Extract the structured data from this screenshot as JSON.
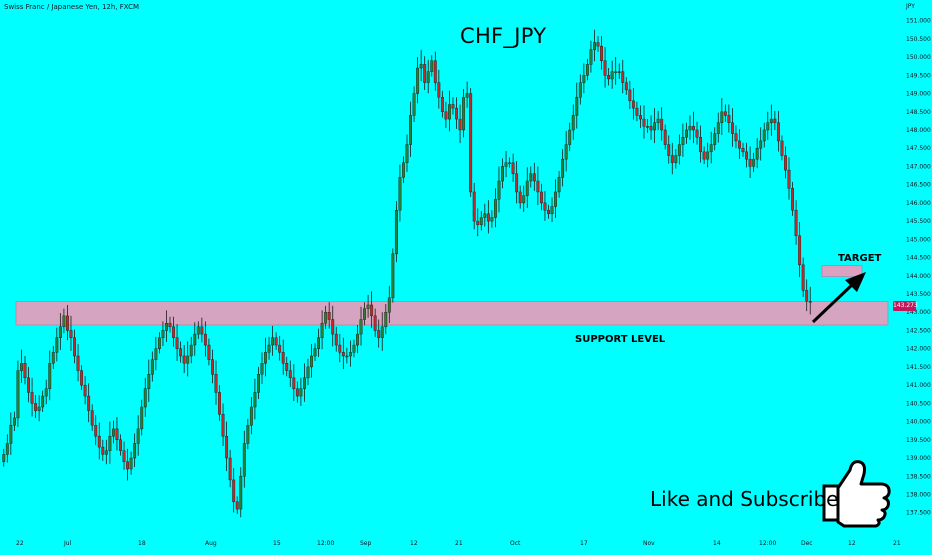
{
  "header": {
    "symbol_info": "Swiss Franc / Japanese Yen, 12h, FXCM",
    "price_axis_unit": "JPY"
  },
  "annotations": {
    "support_label": "SUPPORT LEVEL",
    "target_label": "TARGET",
    "cta_text": "Like and Subscribe",
    "current_price": "143.273"
  },
  "colors": {
    "background": "#00ffff",
    "candle_up": "#2e7d32",
    "candle_down": "#d32f2f",
    "candle_down_body": "#c62828",
    "zone_fill": "#d4a4c0",
    "zone_stroke": "#b07a9e",
    "target_fill": "#dca0c0",
    "axis_text": "#131722",
    "arrow": "#000000"
  },
  "icons": {
    "thumbs_up": "thumbs-up-icon",
    "target_arrow": "arrow-up-right-icon"
  },
  "chart_data": {
    "type": "candlestick",
    "title": "CHF_JPY",
    "y_axis": {
      "unit": "JPY",
      "range": [
        137.3,
        151.1
      ],
      "ticks": [
        "151.000",
        "150.500",
        "150.000",
        "149.500",
        "149.000",
        "148.500",
        "148.000",
        "147.500",
        "147.000",
        "146.500",
        "146.000",
        "145.500",
        "145.000",
        "144.500",
        "144.000",
        "143.500",
        "143.000",
        "142.500",
        "142.000",
        "141.500",
        "141.000",
        "140.500",
        "140.000",
        "139.500",
        "139.000",
        "138.500",
        "138.000",
        "137.500"
      ]
    },
    "x_axis": {
      "ticks": [
        "22",
        "Jul",
        "18",
        "Aug",
        "15",
        "12:00",
        "Sep",
        "12",
        "21",
        "Oct",
        "17",
        "Nov",
        "14",
        "12:00",
        "Dec",
        "12",
        "21"
      ]
    },
    "zones": [
      {
        "name": "SUPPORT LEVEL",
        "low": 142.65,
        "high": 143.3
      },
      {
        "name": "TARGET",
        "low": 143.98,
        "high": 144.28
      }
    ],
    "current_price": 143.273,
    "series": {
      "close": [
        139.1,
        139.4,
        139.9,
        140.1,
        141.4,
        141.6,
        141.2,
        140.8,
        140.5,
        140.3,
        140.4,
        140.7,
        140.9,
        141.6,
        141.9,
        142.3,
        142.6,
        142.9,
        142.5,
        142.3,
        141.8,
        141.4,
        141.0,
        140.7,
        140.3,
        139.9,
        139.6,
        139.3,
        139.1,
        139.2,
        139.6,
        139.8,
        139.5,
        139.2,
        138.9,
        138.7,
        139.0,
        139.4,
        139.8,
        140.4,
        140.9,
        141.3,
        141.7,
        142.0,
        142.3,
        142.5,
        142.7,
        142.6,
        142.3,
        142.0,
        141.8,
        141.6,
        141.8,
        142.1,
        142.4,
        142.6,
        142.4,
        142.1,
        141.7,
        141.3,
        140.8,
        140.2,
        139.6,
        139.0,
        138.4,
        137.8,
        137.6,
        138.5,
        139.4,
        139.9,
        140.4,
        140.8,
        141.3,
        141.6,
        141.9,
        142.1,
        142.3,
        142.1,
        141.9,
        141.6,
        141.4,
        141.2,
        140.9,
        140.7,
        140.9,
        141.2,
        141.5,
        141.8,
        142.0,
        142.3,
        142.7,
        143.0,
        142.8,
        142.4,
        142.1,
        141.9,
        141.8,
        141.8,
        141.9,
        142.1,
        142.4,
        142.8,
        143.1,
        143.2,
        142.9,
        142.5,
        142.3,
        142.6,
        143.0,
        143.4,
        144.6,
        145.8,
        146.7,
        147.1,
        147.6,
        148.4,
        149.0,
        149.7,
        149.8,
        149.3,
        149.6,
        149.9,
        149.3,
        148.9,
        148.5,
        148.3,
        148.7,
        148.6,
        148.3,
        148.0,
        148.9,
        149.0,
        146.3,
        145.5,
        145.4,
        145.6,
        145.7,
        145.5,
        145.6,
        146.1,
        146.6,
        147.0,
        147.1,
        147.1,
        146.8,
        146.3,
        146.0,
        146.2,
        146.6,
        146.8,
        146.6,
        146.3,
        146.0,
        145.8,
        145.7,
        145.9,
        146.3,
        146.7,
        147.2,
        147.6,
        148.0,
        148.4,
        148.9,
        149.3,
        149.5,
        149.8,
        150.2,
        150.4,
        150.3,
        149.9,
        149.5,
        149.4,
        149.6,
        149.6,
        149.6,
        149.3,
        149.1,
        148.8,
        148.6,
        148.4,
        148.3,
        148.1,
        148.1,
        148.0,
        148.2,
        148.3,
        148.0,
        147.6,
        147.3,
        147.1,
        147.3,
        147.6,
        147.8,
        148.0,
        148.1,
        148.0,
        147.8,
        147.4,
        147.2,
        147.4,
        147.6,
        147.9,
        148.2,
        148.5,
        148.4,
        148.2,
        147.9,
        147.7,
        147.5,
        147.4,
        147.2,
        147.0,
        147.2,
        147.5,
        147.7,
        148.0,
        148.2,
        148.3,
        148.2,
        147.7,
        147.3,
        146.9,
        146.4,
        145.8,
        145.1,
        144.3,
        143.6,
        143.3,
        143.3
      ]
    }
  }
}
